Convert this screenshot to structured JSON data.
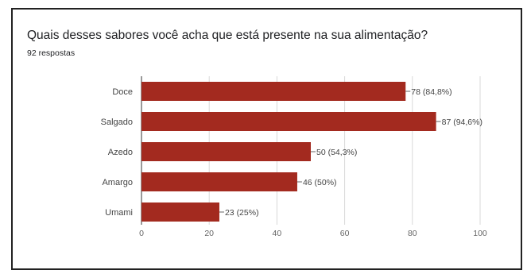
{
  "header": {
    "title": "Quais desses sabores você acha que está presente na sua alimentação?",
    "subtitle": "92 respostas"
  },
  "chart_data": {
    "type": "bar",
    "orientation": "horizontal",
    "categories": [
      "Doce",
      "Salgado",
      "Azedo",
      "Amargo",
      "Umami"
    ],
    "values": [
      78,
      87,
      50,
      46,
      23
    ],
    "labels": [
      "78 (84,8%)",
      "87 (94,6%)",
      "50 (54,3%)",
      "46 (50%)",
      "23 (25%)"
    ],
    "xlim": [
      0,
      100
    ],
    "xticks": [
      0,
      20,
      40,
      60,
      80,
      100
    ],
    "grid": true,
    "bar_color": "#a32a1f"
  }
}
